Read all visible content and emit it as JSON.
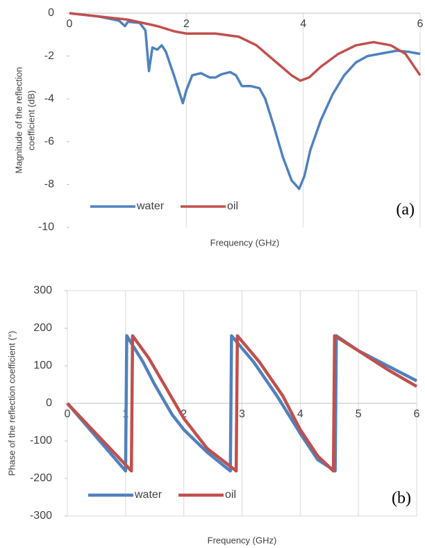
{
  "chart_data": [
    {
      "type": "line",
      "ylabel": [
        "Magnitude of the reflection",
        "coefficient (dB)"
      ],
      "xlabel": "Frequency (GHz)",
      "annotation": "(a)",
      "xlim": [
        0,
        6
      ],
      "xticks": [
        0,
        2,
        4,
        6
      ],
      "ylim": [
        -10,
        0
      ],
      "yticks": [
        0,
        -2,
        -4,
        -6,
        -8,
        -10
      ],
      "grid": "x",
      "border": false,
      "legend": "lower left",
      "series": [
        {
          "name": "water",
          "color": "#4f81bd",
          "x": [
            0,
            0.5,
            0.85,
            0.95,
            1.0,
            1.2,
            1.3,
            1.36,
            1.42,
            1.5,
            1.58,
            1.65,
            1.8,
            1.94,
            2.0,
            2.1,
            2.25,
            2.4,
            2.5,
            2.6,
            2.75,
            2.85,
            2.95,
            3.1,
            3.25,
            3.35,
            3.5,
            3.65,
            3.8,
            3.93,
            4.02,
            4.12,
            4.3,
            4.5,
            4.7,
            4.9,
            5.1,
            5.4,
            5.6,
            5.8,
            6.0
          ],
          "values": [
            0,
            -0.15,
            -0.35,
            -0.6,
            -0.4,
            -0.45,
            -0.8,
            -2.7,
            -1.6,
            -1.7,
            -1.5,
            -1.8,
            -3.0,
            -4.2,
            -3.6,
            -2.9,
            -2.8,
            -3.0,
            -3.0,
            -2.85,
            -2.75,
            -2.9,
            -3.4,
            -3.4,
            -3.5,
            -4.0,
            -5.3,
            -6.7,
            -7.8,
            -8.2,
            -7.6,
            -6.4,
            -5.0,
            -3.8,
            -2.9,
            -2.3,
            -2.0,
            -1.85,
            -1.75,
            -1.8,
            -1.9
          ]
        },
        {
          "name": "oil",
          "color": "#c0504d",
          "x": [
            0,
            1,
            1.5,
            1.8,
            2,
            2.5,
            2.9,
            3.2,
            3.5,
            3.8,
            3.95,
            4.1,
            4.3,
            4.6,
            4.9,
            5.2,
            5.5,
            5.75,
            6
          ],
          "values": [
            0,
            -0.3,
            -0.6,
            -0.85,
            -0.95,
            -0.95,
            -1.1,
            -1.5,
            -2.2,
            -2.9,
            -3.15,
            -3.0,
            -2.5,
            -1.9,
            -1.5,
            -1.35,
            -1.5,
            -1.9,
            -2.9
          ]
        }
      ]
    },
    {
      "type": "line",
      "ylabel": [
        "Phase of the reflection coefficient (°)"
      ],
      "xlabel": "Frequency (GHz)",
      "annotation": "(b)",
      "xlim": [
        0,
        6
      ],
      "xticks": [
        0,
        1,
        2,
        3,
        4,
        5,
        6
      ],
      "ylim": [
        -300,
        300
      ],
      "yticks": [
        300,
        200,
        100,
        0,
        -100,
        -200,
        -300
      ],
      "grid": "x",
      "border": true,
      "legend": "lower left",
      "series": [
        {
          "name": "water",
          "color": "#4f81bd",
          "x": [
            0,
            1.0,
            1.02,
            1.1,
            1.3,
            1.5,
            1.8,
            2.0,
            2.4,
            2.8,
            2.82,
            3.2,
            3.6,
            4.0,
            4.3,
            4.6,
            4.62,
            5,
            5.5,
            6
          ],
          "values": [
            0,
            -180,
            180,
            160,
            110,
            50,
            -30,
            -70,
            -130,
            -180,
            180,
            110,
            20,
            -80,
            -150,
            -180,
            180,
            140,
            100,
            60
          ]
        },
        {
          "name": "oil",
          "color": "#c0504d",
          "x": [
            0,
            1.1,
            1.12,
            1.4,
            1.7,
            2.0,
            2.4,
            2.9,
            2.92,
            3.3,
            3.7,
            4.0,
            4.3,
            4.57,
            4.59,
            5,
            5.5,
            6
          ],
          "values": [
            0,
            -180,
            180,
            120,
            40,
            -40,
            -120,
            -180,
            180,
            110,
            20,
            -70,
            -140,
            -180,
            180,
            140,
            90,
            45
          ]
        }
      ]
    }
  ]
}
